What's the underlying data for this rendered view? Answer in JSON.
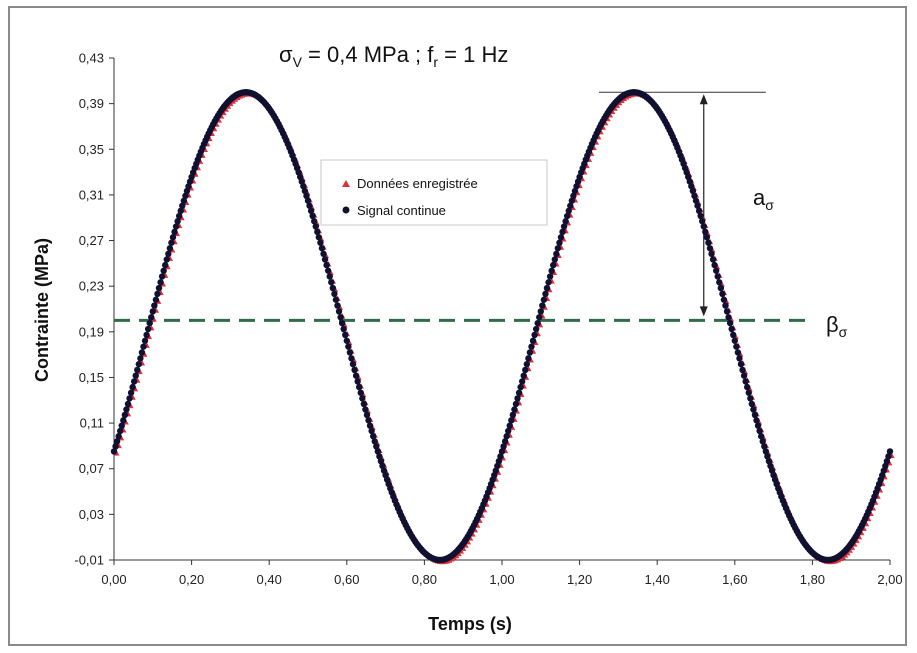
{
  "chart_data": {
    "type": "scatter",
    "title": "σV = 0,4 MPa ; fr = 1 Hz",
    "title_parts": {
      "sigma": "σ",
      "sigma_sub": "V",
      "mid": " = 0,4 MPa ; f",
      "f_sub": "r",
      "end": " = 1 Hz"
    },
    "xlabel": "Temps (s)",
    "ylabel": "Contrainte (MPa)",
    "xlim": [
      0,
      2
    ],
    "ylim": [
      -0.01,
      0.43
    ],
    "x_ticks": [
      0.0,
      0.2,
      0.4,
      0.6,
      0.8,
      1.0,
      1.2,
      1.4,
      1.6,
      1.8,
      2.0
    ],
    "x_tick_labels": [
      "0,00",
      "0,20",
      "0,40",
      "0,60",
      "0,80",
      "1,00",
      "1,20",
      "1,40",
      "1,60",
      "1,80",
      "2,00"
    ],
    "y_ticks": [
      -0.01,
      0.03,
      0.07,
      0.11,
      0.15,
      0.19,
      0.23,
      0.27,
      0.31,
      0.35,
      0.39,
      0.43
    ],
    "y_tick_labels": [
      "-0,01",
      "0,03",
      "0,07",
      "0,11",
      "0,15",
      "0,19",
      "0,23",
      "0,27",
      "0,31",
      "0,35",
      "0,39",
      "0,43"
    ],
    "grid": false,
    "legend_position": "center",
    "series": [
      {
        "name": "Données enregistrée",
        "marker": "triangle",
        "color": "#e0303a",
        "model": {
          "mean": 0.195,
          "amplitude": 0.205,
          "frequency_hz": 1,
          "peak_time_s": 0.34
        }
      },
      {
        "name": "Signal continue",
        "marker": "circle",
        "color": "#101030",
        "model": {
          "mean": 0.195,
          "amplitude": 0.205,
          "frequency_hz": 1,
          "peak_time_s": 0.34
        }
      }
    ],
    "annotations": {
      "beta_label": "β",
      "beta_sub": "σ",
      "beta_level": 0.2,
      "a_label": "a",
      "a_sub": "σ",
      "a_top": 0.4,
      "a_bottom": 0.2,
      "a_x_start": 1.25,
      "a_x_end": 1.68,
      "a_arrow_x": 1.52
    },
    "colors": {
      "recorded": "#e0303a",
      "signal": "#101030",
      "mean_line": "#2e6b4a",
      "axis": "#333333"
    }
  }
}
